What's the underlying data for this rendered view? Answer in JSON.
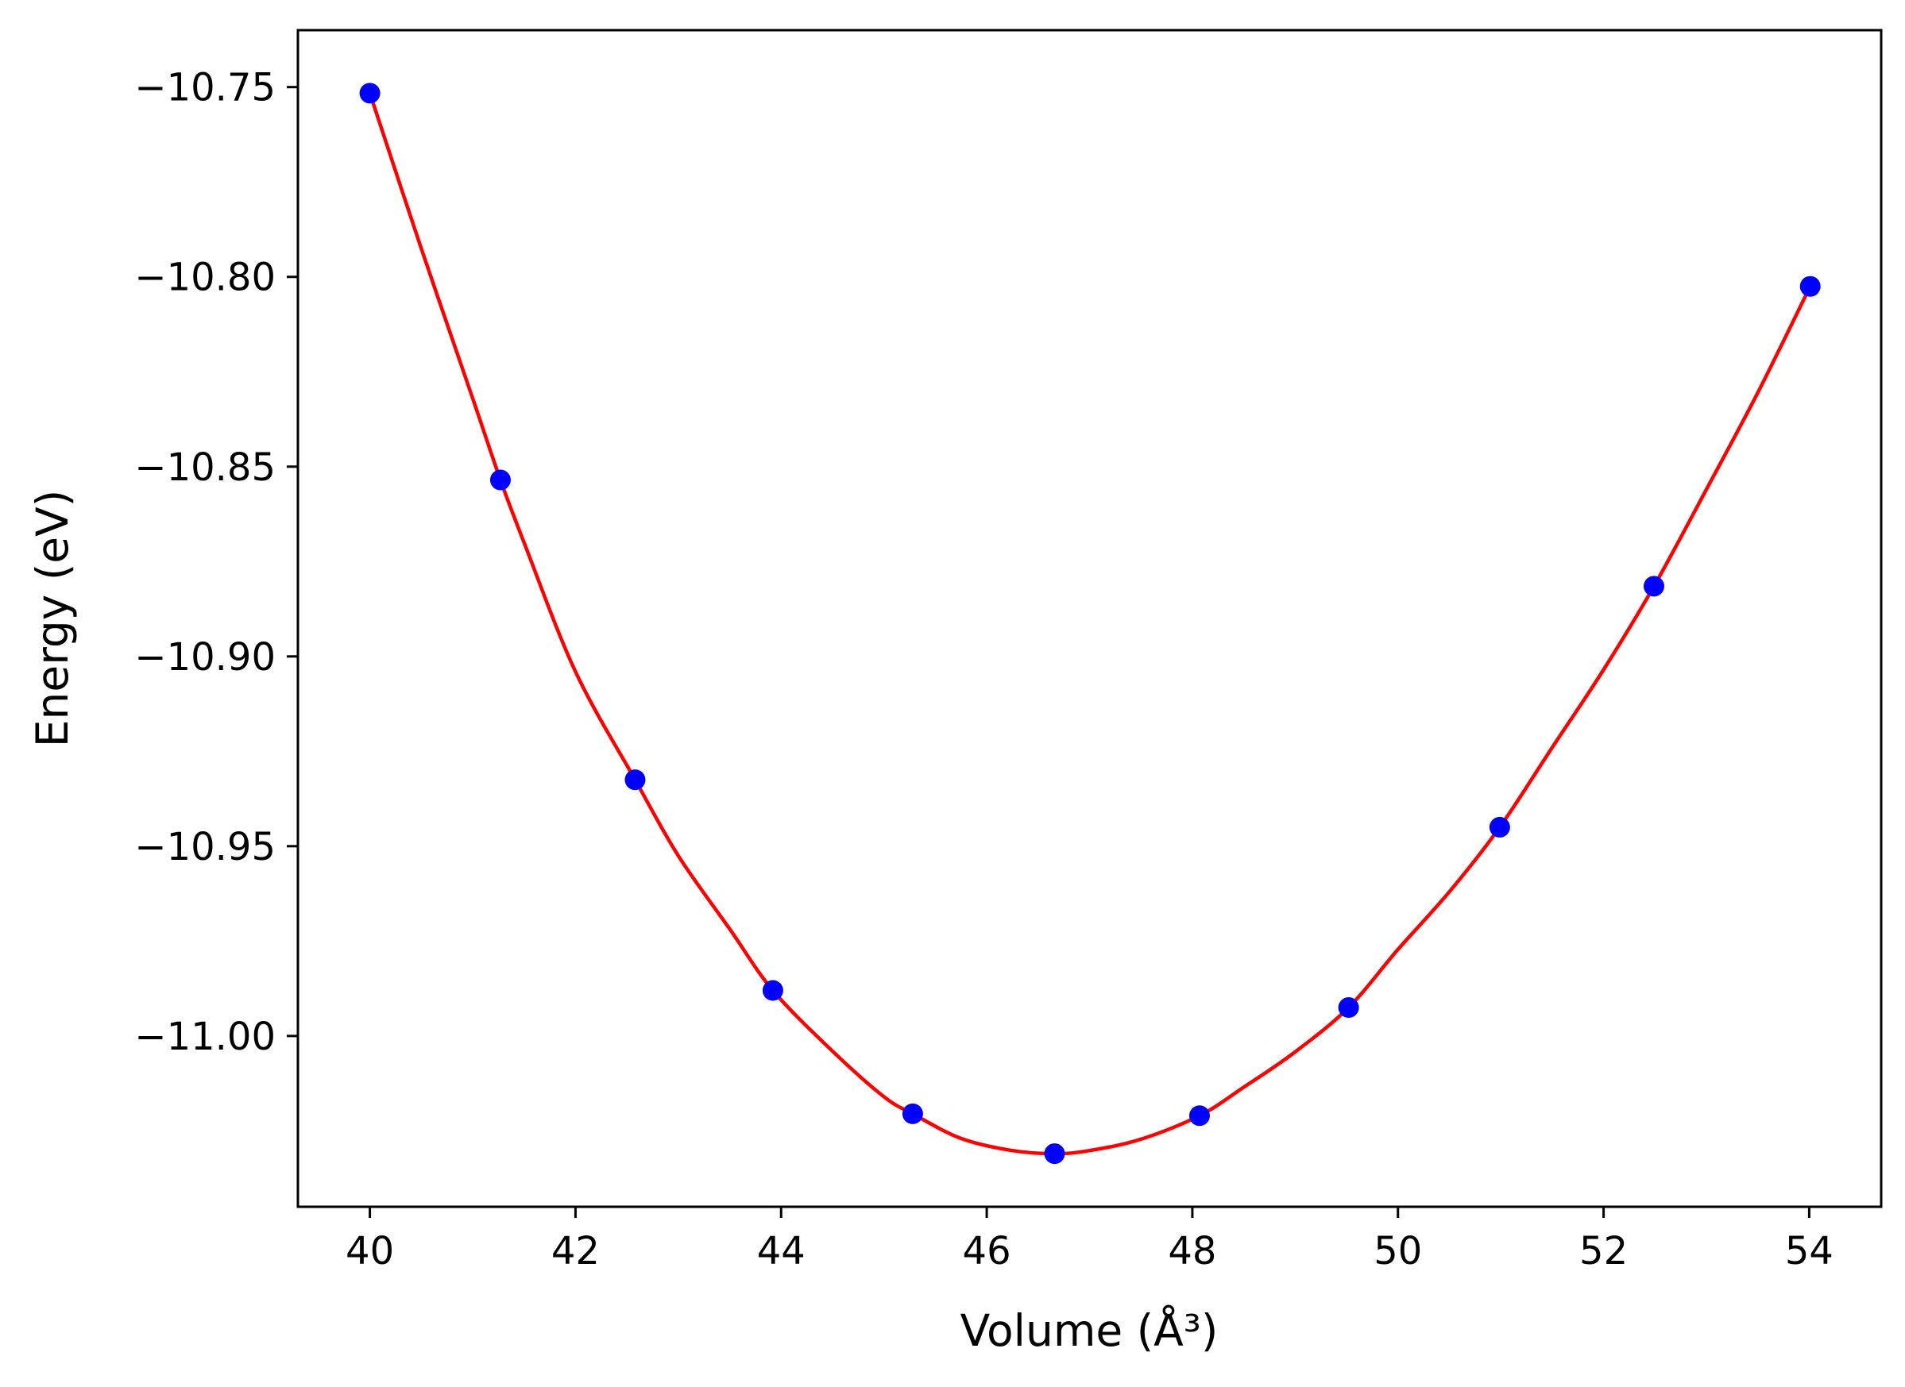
{
  "chart_data": {
    "type": "line",
    "title": "",
    "xlabel": "Volume (Å³)",
    "ylabel": "Energy (eV)",
    "xlim": [
      39.3,
      54.7
    ],
    "ylim": [
      -11.045,
      -10.735
    ],
    "xticks": [
      40,
      42,
      44,
      46,
      48,
      50,
      52,
      54
    ],
    "yticks": [
      -10.75,
      -10.8,
      -10.85,
      -10.9,
      -10.95,
      -11.0
    ],
    "xtick_labels": [
      "40",
      "42",
      "44",
      "46",
      "48",
      "50",
      "52",
      "54"
    ],
    "ytick_labels": [
      "−10.75",
      "−10.80",
      "−10.85",
      "−10.90",
      "−10.95",
      "−11.00"
    ],
    "grid": false,
    "legend": "none",
    "series": [
      {
        "kind": "scatter",
        "color": "#0000ff",
        "x": [
          40.0,
          41.27,
          42.58,
          43.92,
          45.28,
          46.66,
          48.07,
          49.52,
          50.99,
          52.49,
          54.01
        ],
        "y": [
          -10.7516,
          -10.8535,
          -10.9325,
          -10.988,
          -11.0205,
          -11.031,
          -11.021,
          -10.9925,
          -10.945,
          -10.8815,
          -10.8025
        ]
      },
      {
        "kind": "line",
        "color": "#ff0000",
        "x": [
          40.0,
          40.5,
          41.0,
          41.27,
          41.5,
          42.0,
          42.58,
          43.0,
          43.5,
          43.92,
          44.5,
          45.0,
          45.28,
          45.75,
          46.25,
          46.66,
          47.0,
          47.5,
          48.07,
          48.5,
          49.0,
          49.52,
          50.0,
          50.5,
          50.99,
          51.5,
          52.0,
          52.49,
          53.0,
          53.5,
          54.01
        ],
        "y": [
          -10.7516,
          -10.7925,
          -10.832,
          -10.8535,
          -10.87,
          -10.904,
          -10.9325,
          -10.9525,
          -10.9718,
          -10.988,
          -11.004,
          -11.016,
          -11.0205,
          -11.027,
          -11.0302,
          -11.031,
          -11.0302,
          -11.0272,
          -11.021,
          -11.0135,
          -11.0042,
          -10.9925,
          -10.9772,
          -10.962,
          -10.945,
          -10.924,
          -10.9035,
          -10.8815,
          -10.856,
          -10.8305,
          -10.8025
        ]
      }
    ]
  }
}
